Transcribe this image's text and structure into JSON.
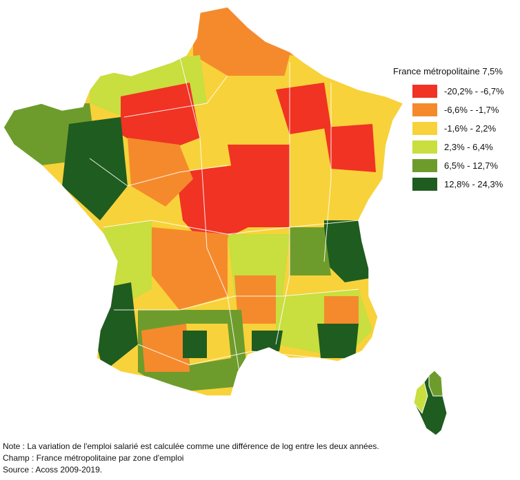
{
  "legend": {
    "title": "France métropolitaine 7,5%",
    "classes": [
      {
        "label": "-20,2% - -6,7%",
        "color": "#f03323"
      },
      {
        "label": "-6,6% - -1,7%",
        "color": "#f58a2c"
      },
      {
        "label": "-1,6% - 2,2%",
        "color": "#f8d23a"
      },
      {
        "label": "2,3% - 6,4%",
        "color": "#c9de3f"
      },
      {
        "label": "6,5% - 12,7%",
        "color": "#6e9c2c"
      },
      {
        "label": "12,8% - 24,3%",
        "color": "#1f5c1f"
      }
    ]
  },
  "notes": {
    "note": "Note : La variation de l'emploi salarié est calculée comme une différence de log entre les deux années.",
    "champ": "Champ : France métropolitaine par zone d'emploi",
    "source": "Source : Acoss 2009-2019."
  },
  "map": {
    "regions": [
      {
        "name": "nord",
        "color": "#f58a2c"
      },
      {
        "name": "normandie",
        "color": "#c9de3f"
      },
      {
        "name": "ile-de-france",
        "color": "#f03323"
      },
      {
        "name": "grand-est",
        "color": "#f8d23a"
      },
      {
        "name": "bretagne",
        "color": "#6e9c2c"
      },
      {
        "name": "pays-de-la-loire",
        "color": "#1f5c1f"
      },
      {
        "name": "centre",
        "color": "#f03323"
      },
      {
        "name": "bourgogne",
        "color": "#f03323"
      },
      {
        "name": "alpes",
        "color": "#1f5c1f"
      },
      {
        "name": "nouvelle-aquitaine",
        "color": "#f58a2c"
      },
      {
        "name": "auvergne",
        "color": "#f8d23a"
      },
      {
        "name": "occitanie",
        "color": "#6e9c2c"
      },
      {
        "name": "provence",
        "color": "#f58a2c"
      },
      {
        "name": "cote-azur",
        "color": "#1f5c1f"
      },
      {
        "name": "landes",
        "color": "#c9de3f"
      },
      {
        "name": "corse",
        "color": "#1f5c1f"
      }
    ]
  }
}
